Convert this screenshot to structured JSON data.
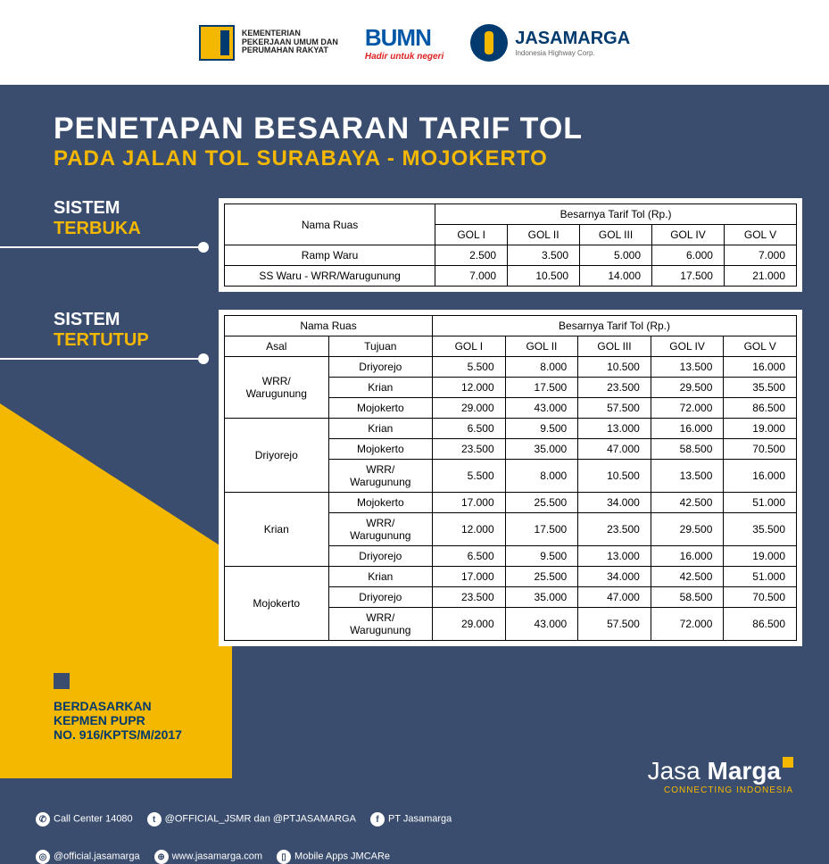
{
  "colors": {
    "bg_navy": "#3a4d6e",
    "accent_yellow": "#f5b800",
    "white": "#ffffff",
    "text_dark": "#000000",
    "brand_blue": "#003a6e"
  },
  "header": {
    "ministry_lines": "KEMENTERIAN\nPEKERJAAN UMUM DAN\nPERUMAHAN RAKYAT",
    "bumn": "BUMN",
    "bumn_sub": "Hadir untuk negeri",
    "jasamarga": "JASAMARGA",
    "jasamarga_sub": "Indonesia Highway Corp."
  },
  "title": {
    "line1": "PENETAPAN BESARAN TARIF TOL",
    "line2": "PADA JALAN TOL SURABAYA - MOJOKERTO"
  },
  "sections": {
    "terbuka": {
      "l1": "SISTEM",
      "l2": "TERBUKA"
    },
    "tertutup": {
      "l1": "SISTEM",
      "l2": "TERTUTUP"
    }
  },
  "table_terbuka": {
    "header_nama": "Nama Ruas",
    "header_tarif": "Besarnya Tarif Tol (Rp.)",
    "gol_cols": [
      "GOL I",
      "GOL II",
      "GOL III",
      "GOL IV",
      "GOL V"
    ],
    "rows": [
      {
        "name": "Ramp Waru",
        "vals": [
          "2.500",
          "3.500",
          "5.000",
          "6.000",
          "7.000"
        ]
      },
      {
        "name": "SS Waru - WRR/Warugunung",
        "vals": [
          "7.000",
          "10.500",
          "14.000",
          "17.500",
          "21.000"
        ]
      }
    ]
  },
  "table_tertutup": {
    "header_nama": "Nama Ruas",
    "header_tarif": "Besarnya Tarif Tol (Rp.)",
    "sub_asal": "Asal",
    "sub_tujuan": "Tujuan",
    "gol_cols": [
      "GOL I",
      "GOL II",
      "GOL III",
      "GOL IV",
      "GOL V"
    ],
    "groups": [
      {
        "asal": "WRR/\nWarugunung",
        "rows": [
          {
            "tujuan": "Driyorejo",
            "vals": [
              "5.500",
              "8.000",
              "10.500",
              "13.500",
              "16.000"
            ]
          },
          {
            "tujuan": "Krian",
            "vals": [
              "12.000",
              "17.500",
              "23.500",
              "29.500",
              "35.500"
            ]
          },
          {
            "tujuan": "Mojokerto",
            "vals": [
              "29.000",
              "43.000",
              "57.500",
              "72.000",
              "86.500"
            ]
          }
        ]
      },
      {
        "asal": "Driyorejo",
        "rows": [
          {
            "tujuan": "Krian",
            "vals": [
              "6.500",
              "9.500",
              "13.000",
              "16.000",
              "19.000"
            ]
          },
          {
            "tujuan": "Mojokerto",
            "vals": [
              "23.500",
              "35.000",
              "47.000",
              "58.500",
              "70.500"
            ]
          },
          {
            "tujuan": "WRR/\nWarugunung",
            "vals": [
              "5.500",
              "8.000",
              "10.500",
              "13.500",
              "16.000"
            ]
          }
        ]
      },
      {
        "asal": "Krian",
        "rows": [
          {
            "tujuan": "Mojokerto",
            "vals": [
              "17.000",
              "25.500",
              "34.000",
              "42.500",
              "51.000"
            ]
          },
          {
            "tujuan": "WRR/\nWarugunung",
            "vals": [
              "12.000",
              "17.500",
              "23.500",
              "29.500",
              "35.500"
            ]
          },
          {
            "tujuan": "Driyorejo",
            "vals": [
              "6.500",
              "9.500",
              "13.000",
              "16.000",
              "19.000"
            ]
          }
        ]
      },
      {
        "asal": "Mojokerto",
        "rows": [
          {
            "tujuan": "Krian",
            "vals": [
              "17.000",
              "25.500",
              "34.000",
              "42.500",
              "51.000"
            ]
          },
          {
            "tujuan": "Driyorejo",
            "vals": [
              "23.500",
              "35.000",
              "47.000",
              "58.500",
              "70.500"
            ]
          },
          {
            "tujuan": "WRR/\nWarugunung",
            "vals": [
              "29.000",
              "43.000",
              "57.500",
              "72.000",
              "86.500"
            ]
          }
        ]
      }
    ]
  },
  "note": {
    "line1": "BERDASARKAN",
    "line2": "KEPMEN PUPR",
    "line3": "NO. 916/KPTS/M/2017"
  },
  "footer": {
    "brand_thin": "Jasa ",
    "brand_bold": "Marga",
    "brand_sub": "CONNECTING INDONESIA",
    "call": "Call Center 14080",
    "twitter": "@OFFICIAL_JSMR dan @PTJASAMARGA",
    "facebook": "PT Jasamarga",
    "instagram": "@official.jasamarga",
    "web": "www.jasamarga.com",
    "mobile": "Mobile Apps JMCARe"
  }
}
